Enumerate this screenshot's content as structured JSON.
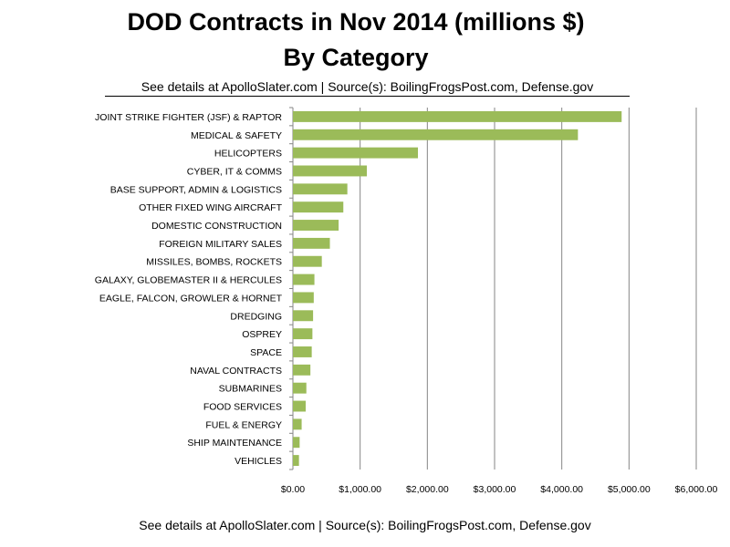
{
  "title": "DOD Contracts in Nov 2014 (millions $)",
  "title_line2": "By Category",
  "subtitle": "See details at ApolloSlater.com | Source(s): BoilingFrogsPost.com, Defense.gov",
  "footer": "See details at ApolloSlater.com | Source(s): BoilingFrogsPost.com, Defense.gov",
  "chart_data": {
    "type": "bar",
    "orientation": "horizontal",
    "categories": [
      "JOINT STRIKE FIGHTER (JSF) & RAPTOR",
      "MEDICAL & SAFETY",
      "HELICOPTERS",
      "CYBER, IT & COMMS",
      "BASE SUPPORT, ADMIN & LOGISTICS",
      "OTHER FIXED WING AIRCRAFT",
      "DOMESTIC CONSTRUCTION",
      "FOREIGN MILITARY SALES",
      "MISSILES, BOMBS, ROCKETS",
      "GALAXY, GLOBEMASTER II & HERCULES",
      "EAGLE, FALCON, GROWLER & HORNET",
      "DREDGING",
      "OSPREY",
      "SPACE",
      "NAVAL CONTRACTS",
      "SUBMARINES",
      "FOOD SERVICES",
      "FUEL & ENERGY",
      "SHIP MAINTENANCE",
      "VEHICLES"
    ],
    "values": [
      4890,
      4240,
      1860,
      1100,
      810,
      750,
      680,
      550,
      430,
      320,
      310,
      300,
      290,
      280,
      260,
      200,
      190,
      130,
      100,
      90
    ],
    "xlim": [
      0,
      6000
    ],
    "xticks": [
      "$0.00",
      "$1,000.00",
      "$2,000.00",
      "$3,000.00",
      "$4,000.00",
      "$5,000.00",
      "$6,000.00"
    ],
    "grid": "vertical",
    "legend": "none",
    "bar_color": "#9bbb59",
    "grid_color": "#868686"
  }
}
